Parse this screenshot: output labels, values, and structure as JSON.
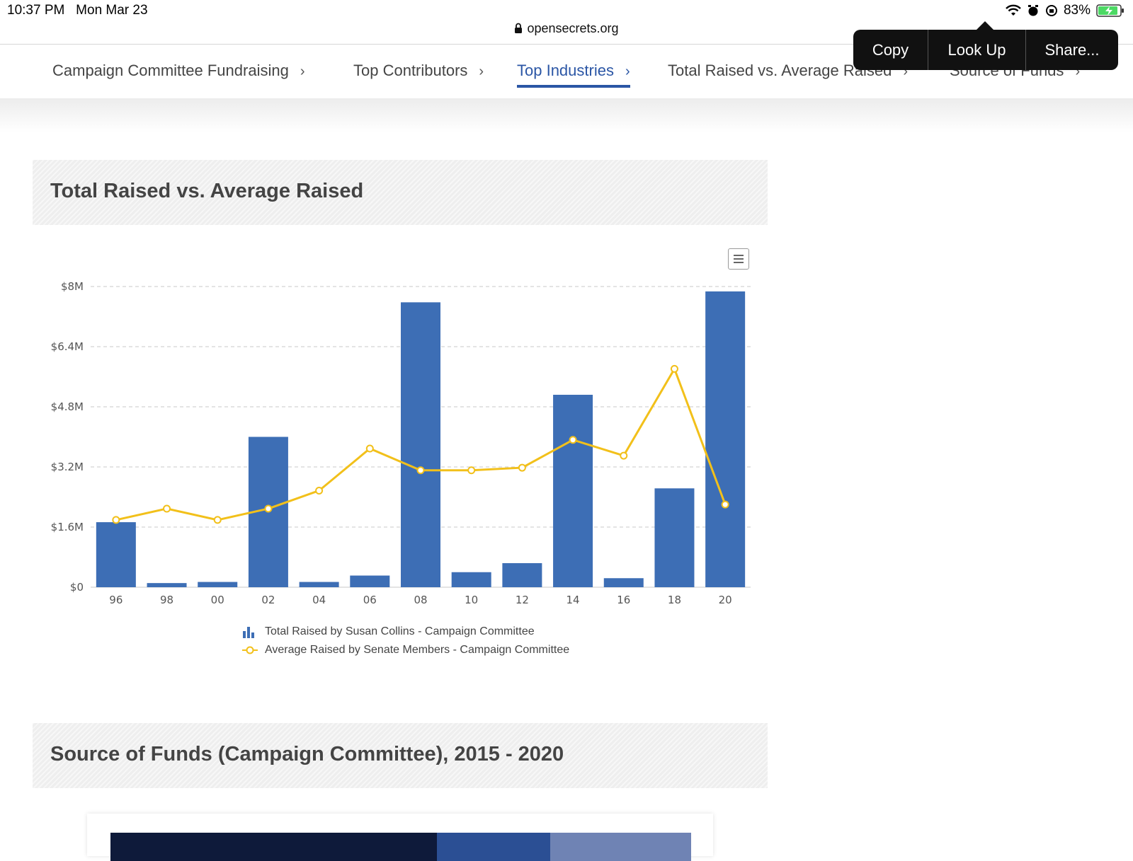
{
  "status_bar": {
    "time": "10:37 PM",
    "date": "Mon Mar 23",
    "battery": "83%",
    "icons": [
      "wifi-icon",
      "alarm-icon",
      "rotation-lock-icon",
      "battery-charging-icon"
    ]
  },
  "browser": {
    "url": "opensecrets.org"
  },
  "nav": {
    "items": [
      {
        "label": "Campaign Committee Fundraising"
      },
      {
        "label": "Top Contributors"
      },
      {
        "label": "Top Industries"
      },
      {
        "label": "Total Raised vs. Average Raised"
      },
      {
        "label": "Source of Funds"
      }
    ],
    "active_index": 2,
    "chevron": "›"
  },
  "context_menu": {
    "copy": "Copy",
    "look_up": "Look Up",
    "share": "Share..."
  },
  "colors": {
    "accent": "#2b56a5",
    "bar": "#3d6eb5",
    "line": "#f2c01a"
  },
  "section1": {
    "title": "Total Raised vs. Average Raised"
  },
  "section2": {
    "title": "Source of Funds (Campaign Committee), 2015 - 2020"
  },
  "chart_data": {
    "type": "bar",
    "title": "",
    "xlabel": "",
    "ylabel": "",
    "ylim": [
      0,
      8000000
    ],
    "ytick_values": [
      0,
      1600000,
      3200000,
      4800000,
      6400000,
      8000000
    ],
    "ytick_labels": [
      "$0",
      "$1.6M",
      "$3.2M",
      "$4.8M",
      "$6.4M",
      "$8M"
    ],
    "categories": [
      "96",
      "98",
      "00",
      "02",
      "04",
      "06",
      "08",
      "10",
      "12",
      "14",
      "16",
      "18",
      "20"
    ],
    "grid": true,
    "legend_position": "bottom-center",
    "series": [
      {
        "name": "Total Raised by Susan Collins - Campaign Committee",
        "type": "bar",
        "values": [
          1730000,
          110000,
          140000,
          4000000,
          140000,
          310000,
          7580000,
          400000,
          640000,
          5120000,
          240000,
          2630000,
          7870000
        ]
      },
      {
        "name": "Average Raised by Senate Members - Campaign Committee",
        "type": "line",
        "values": [
          1790000,
          2090000,
          1790000,
          2090000,
          2570000,
          3690000,
          3110000,
          3110000,
          3180000,
          3920000,
          3500000,
          5810000,
          2200000
        ]
      }
    ]
  },
  "funds_bar": {
    "segments": [
      {
        "fraction": 0.562,
        "color": "#0e1a3a"
      },
      {
        "fraction": 0.195,
        "color": "#2b4f94"
      },
      {
        "fraction": 0.243,
        "color": "#6f83b4"
      }
    ]
  }
}
